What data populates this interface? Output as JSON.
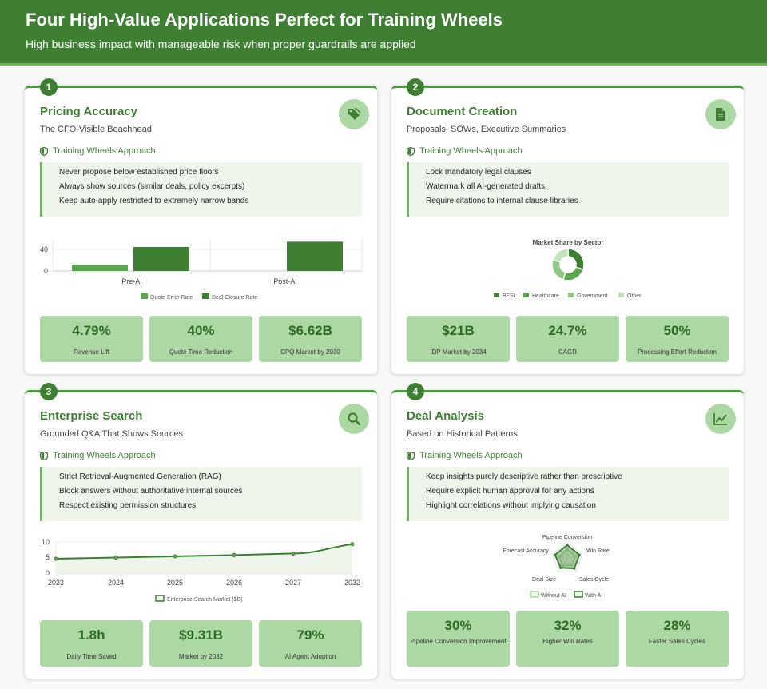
{
  "header": {
    "title": "Four High-Value Applications Perfect for Training Wheels",
    "subtitle": "High business impact with manageable risk when proper guardrails are applied"
  },
  "colors": {
    "dark_green": "#3f7f34",
    "mid_green": "#5aa64d",
    "light_green": "#acd8a4",
    "pale_green": "#eef6ec"
  },
  "cards": [
    {
      "number": "1",
      "title": "Pricing Accuracy",
      "subtitle": "The CFO-Visible Beachhead",
      "icon": "tags-icon",
      "approach_label": "Training Wheels Approach",
      "rules": [
        "Never propose below established price floors",
        "Always show sources (similar deals, policy excerpts)",
        "Keep auto-apply restricted to extremely narrow bands"
      ],
      "stats": [
        {
          "value": "4.79%",
          "label": "Revenue Lift"
        },
        {
          "value": "40%",
          "label": "Quote Time Reduction"
        },
        {
          "value": "$6.62B",
          "label": "CPQ Market by 2030"
        }
      ]
    },
    {
      "number": "2",
      "title": "Document Creation",
      "subtitle": "Proposals, SOWs, Executive Summaries",
      "icon": "document-icon",
      "approach_label": "Training Wheels Approach",
      "rules": [
        "Lock mandatory legal clauses",
        "Watermark all AI-generated drafts",
        "Require citations to internal clause libraries"
      ],
      "stats": [
        {
          "value": "$21B",
          "label": "IDP Market by 2034"
        },
        {
          "value": "24.7%",
          "label": "CAGR"
        },
        {
          "value": "50%",
          "label": "Processing Effort Reduction"
        }
      ]
    },
    {
      "number": "3",
      "title": "Enterprise Search",
      "subtitle": "Grounded Q&A That Shows Sources",
      "icon": "search-icon",
      "approach_label": "Training Wheels Approach",
      "rules": [
        "Strict Retrieval-Augmented Generation (RAG)",
        "Block answers without authoritative internal sources",
        "Respect existing permission structures"
      ],
      "stats": [
        {
          "value": "1.8h",
          "label": "Daily Time Saved"
        },
        {
          "value": "$9.31B",
          "label": "Market by 2032"
        },
        {
          "value": "79%",
          "label": "AI Agent Adoption"
        }
      ]
    },
    {
      "number": "4",
      "title": "Deal Analysis",
      "subtitle": "Based on Historical Patterns",
      "icon": "line-chart-icon",
      "approach_label": "Training Wheels Approach",
      "rules": [
        "Keep insights purely descriptive rather than prescriptive",
        "Require explicit human approval for any actions",
        "Highlight correlations without implying causation"
      ],
      "stats": [
        {
          "value": "30%",
          "label": "Pipeline Conversion Improvement"
        },
        {
          "value": "32%",
          "label": "Higher Win Rates"
        },
        {
          "value": "28%",
          "label": "Faster Sales Cycles"
        }
      ]
    }
  ],
  "chart_data": [
    {
      "type": "bar",
      "categories": [
        "Pre-AI",
        "Post-AI"
      ],
      "series": [
        {
          "name": "Quote Error Rate",
          "values": [
            12,
            0
          ],
          "color": "#5aa64d"
        },
        {
          "name": "Deal Closure Rate",
          "values": [
            45,
            55
          ],
          "color": "#3f7f34"
        }
      ],
      "yticks": [
        "0",
        "40"
      ],
      "ylim": [
        0,
        60
      ],
      "grid": true,
      "legend": "bottom"
    },
    {
      "type": "pie",
      "title": "Market Share by Sector",
      "labels": [
        "BFSI",
        "Healthcare",
        "Government",
        "Other"
      ],
      "values": [
        30,
        25,
        25,
        20
      ],
      "colors": [
        "#3f7f34",
        "#5aa64d",
        "#8ec983",
        "#c2e3bb"
      ],
      "legend": "bottom"
    },
    {
      "type": "line",
      "categories": [
        "2023",
        "2024",
        "2025",
        "2026",
        "2027",
        "2032"
      ],
      "series": [
        {
          "name": "Enterprise Search Market ($B)",
          "values": [
            4.6,
            5.0,
            5.4,
            5.8,
            6.3,
            9.31
          ]
        }
      ],
      "yticks": [
        "0",
        "5",
        "10"
      ],
      "ylim": [
        0,
        10
      ],
      "grid": true,
      "legend": "bottom"
    },
    {
      "type": "radar",
      "axes": [
        "Pipeline Conversion",
        "Win Rate",
        "Sales Cycle",
        "Deal Size",
        "Forecast Accuracy"
      ],
      "series": [
        {
          "name": "Without AI",
          "values": [
            60,
            55,
            50,
            55,
            50
          ],
          "color": "#a6d69b"
        },
        {
          "name": "With AI",
          "values": [
            85,
            80,
            75,
            70,
            80
          ],
          "color": "#3f7f34"
        }
      ],
      "rmax": 100,
      "legend": "bottom"
    }
  ]
}
